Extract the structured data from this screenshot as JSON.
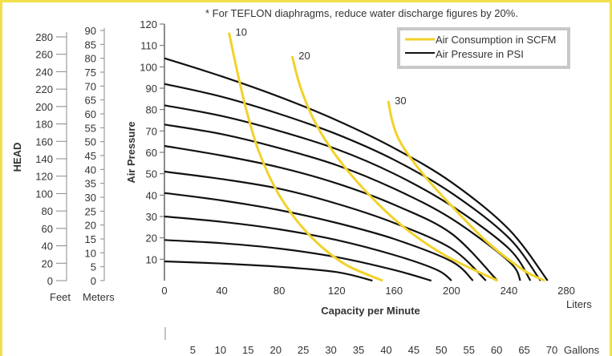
{
  "chart_data": {
    "type": "line",
    "title": "* For TEFLON diaphragms, reduce water discharge figures by 20%.",
    "xlabel": "Capacity per Minute",
    "ylabel": "Air Pressure",
    "head_label": "HEAD",
    "liters_unit": "Liters",
    "gallons_unit": "Gallons",
    "feet_unit": "Feet",
    "meters_unit": "Meters",
    "xlim": [
      0,
      280
    ],
    "ylim": [
      0,
      120
    ],
    "x_ticks": [
      "0",
      "40",
      "80",
      "120",
      "160",
      "200",
      "240",
      "280"
    ],
    "y_ticks": [
      "10",
      "20",
      "30",
      "40",
      "50",
      "60",
      "70",
      "80",
      "90",
      "100",
      "110",
      "120"
    ],
    "feet_ticks": [
      "0",
      "20",
      "40",
      "60",
      "80",
      "100",
      "120",
      "140",
      "160",
      "180",
      "200",
      "220",
      "240",
      "260",
      "280"
    ],
    "meters_ticks": [
      "0",
      "5",
      "10",
      "15",
      "20",
      "25",
      "30",
      "35",
      "40",
      "45",
      "50",
      "55",
      "60",
      "65",
      "70",
      "75",
      "80",
      "85",
      "90"
    ],
    "gallons_ticks": [
      "5",
      "10",
      "15",
      "20",
      "25",
      "30",
      "35",
      "40",
      "45",
      "50",
      "55",
      "60",
      "65",
      "70"
    ],
    "legend": {
      "position": "top-right",
      "items": [
        "Air Consumption in SCFM",
        "Air Pressure in PSI"
      ]
    },
    "colors": {
      "consumption": "#f2d22a",
      "pressure": "#111111",
      "frame": "#f2e04a",
      "legend_border": "#c8c8c8"
    },
    "pressure_series": [
      {
        "values": [
          [
            0,
            9
          ],
          [
            40,
            8
          ],
          [
            80,
            6.5
          ],
          [
            120,
            4
          ],
          [
            145,
            0
          ]
        ]
      },
      {
        "values": [
          [
            0,
            19
          ],
          [
            40,
            17.5
          ],
          [
            80,
            15
          ],
          [
            120,
            11
          ],
          [
            160,
            5
          ],
          [
            186,
            0
          ]
        ]
      },
      {
        "values": [
          [
            0,
            30
          ],
          [
            40,
            27.5
          ],
          [
            80,
            24
          ],
          [
            120,
            19
          ],
          [
            160,
            12
          ],
          [
            190,
            5
          ],
          [
            200,
            0
          ]
        ]
      },
      {
        "values": [
          [
            0,
            41
          ],
          [
            40,
            37.5
          ],
          [
            80,
            33
          ],
          [
            120,
            27
          ],
          [
            160,
            19.5
          ],
          [
            200,
            9
          ],
          [
            215,
            0
          ]
        ]
      },
      {
        "values": [
          [
            0,
            51
          ],
          [
            40,
            47.5
          ],
          [
            80,
            43
          ],
          [
            120,
            36
          ],
          [
            160,
            27
          ],
          [
            200,
            15
          ],
          [
            224,
            0
          ]
        ]
      },
      {
        "values": [
          [
            0,
            63
          ],
          [
            40,
            58.5
          ],
          [
            80,
            53
          ],
          [
            120,
            45.5
          ],
          [
            160,
            35.5
          ],
          [
            200,
            22
          ],
          [
            232,
            0
          ]
        ]
      },
      {
        "values": [
          [
            0,
            73
          ],
          [
            40,
            68.5
          ],
          [
            80,
            62
          ],
          [
            120,
            54
          ],
          [
            160,
            43
          ],
          [
            200,
            29
          ],
          [
            240,
            9
          ],
          [
            248,
            0
          ]
        ]
      },
      {
        "values": [
          [
            0,
            82
          ],
          [
            40,
            77
          ],
          [
            80,
            70
          ],
          [
            120,
            61.5
          ],
          [
            160,
            50
          ],
          [
            200,
            35
          ],
          [
            240,
            15
          ],
          [
            255,
            0
          ]
        ]
      },
      {
        "values": [
          [
            0,
            92
          ],
          [
            40,
            86
          ],
          [
            80,
            78
          ],
          [
            120,
            68.5
          ],
          [
            160,
            56.5
          ],
          [
            200,
            41
          ],
          [
            240,
            20
          ],
          [
            262,
            0
          ]
        ]
      },
      {
        "values": [
          [
            0,
            104
          ],
          [
            40,
            95.5
          ],
          [
            80,
            86
          ],
          [
            120,
            75
          ],
          [
            160,
            62
          ],
          [
            200,
            46
          ],
          [
            240,
            24
          ],
          [
            267,
            0
          ]
        ]
      }
    ],
    "consumption_series": [
      {
        "label": "10",
        "values": [
          [
            45,
            116
          ],
          [
            50,
            100
          ],
          [
            57,
            80
          ],
          [
            66,
            60
          ],
          [
            80,
            40
          ],
          [
            100,
            22
          ],
          [
            125,
            8
          ],
          [
            152,
            0
          ]
        ]
      },
      {
        "label": "20",
        "values": [
          [
            89,
            105
          ],
          [
            95,
            90
          ],
          [
            105,
            74
          ],
          [
            120,
            58
          ],
          [
            140,
            42
          ],
          [
            165,
            26
          ],
          [
            195,
            12
          ],
          [
            232,
            0
          ]
        ]
      },
      {
        "label": "30",
        "values": [
          [
            156,
            84
          ],
          [
            159,
            74
          ],
          [
            165,
            64
          ],
          [
            180,
            50
          ],
          [
            200,
            35
          ],
          [
            225,
            18
          ],
          [
            250,
            5
          ],
          [
            265,
            0
          ]
        ]
      }
    ]
  }
}
